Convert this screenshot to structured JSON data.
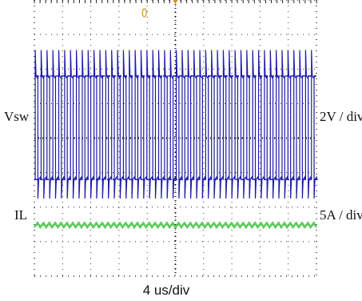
{
  "labels": {
    "ch1_name": "Vsw",
    "ch1_scale": "2V / div",
    "ch2_name": "IL",
    "ch2_scale": "5A / div",
    "x_scale": "4 us/div"
  },
  "colors": {
    "vsw": "#1c1aa6",
    "il": "#2bb52b",
    "grid": "#222222",
    "background": "#ffffff",
    "trigger_marker": "#e08a1e"
  },
  "chart_data": {
    "type": "line",
    "grid": "dotted",
    "divisions": {
      "x": 10,
      "y": 8
    },
    "x_unit": "us",
    "x_per_div": 4,
    "x_range": [
      0,
      40
    ],
    "series": [
      {
        "name": "Vsw",
        "scale": "2V / div",
        "waveform": "square",
        "pulses": 48,
        "high_div": 2.2,
        "low_div": 5.2,
        "peak_div": 1.45,
        "dip_div": 5.75
      },
      {
        "name": "IL",
        "scale": "5A / div",
        "waveform": "triangle",
        "cycles": 48,
        "center_div": 6.52,
        "ripple_pp_div": 0.12
      }
    ]
  }
}
